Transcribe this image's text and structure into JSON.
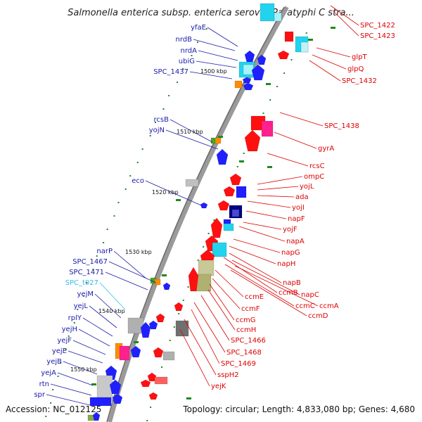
{
  "header": {
    "title": "Salmonella enterica subsp. enterica serovar Paratyphi C stra..."
  },
  "footer": {
    "accession": "Accession: NC_012125",
    "topology": "Topology: circular; Length: 4,833,080 bp; Genes: 4,680"
  },
  "colors": {
    "left_label": "#1a1aaa",
    "left_label_trna": "#33bbee",
    "right_label": "#dd0000",
    "backbone": "#888888",
    "ticks": "#228822"
  },
  "scale_labels": [
    "1500 kbp",
    "1510 kbp",
    "1520 kbp",
    "1530 kbp",
    "1540 kbp",
    "1550 kbp"
  ],
  "left_genes": [
    "yfaE",
    "nrdB",
    "nrdA",
    "ubiG",
    "SPC_1437",
    "rcsB",
    "yojN",
    "eco",
    "narP",
    "SPC_1467",
    "SPC_1471",
    "SPC_t027",
    "yejM",
    "yejL",
    "rplY",
    "yejH",
    "yejF",
    "yejE",
    "yejB",
    "yejA",
    "rtn",
    "spr"
  ],
  "right_genes": [
    "SPC_1422",
    "SPC_1423",
    "glpT",
    "glpQ",
    "SPC_1432",
    "SPC_1438",
    "gyrA",
    "rcsC",
    "ompC",
    "yojL",
    "ada",
    "yojI",
    "napF",
    "yojF",
    "napA",
    "napG",
    "napH",
    "napB",
    "ccmB",
    "napC",
    "ccmC",
    "ccmA",
    "ccmD",
    "ccmE",
    "ccmF",
    "ccmG",
    "ccmH",
    "SPC_1466",
    "SPC_1468",
    "SPC_1469",
    "sspH2",
    "yejK"
  ]
}
